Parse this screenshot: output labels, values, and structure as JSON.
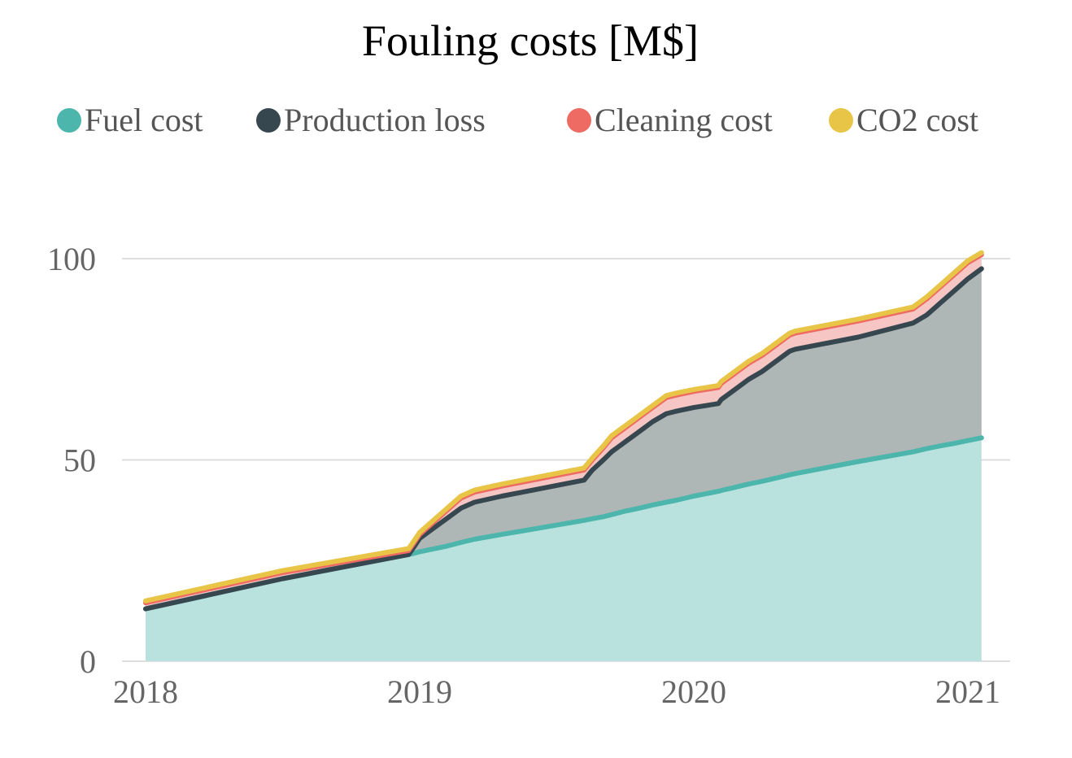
{
  "chart_data": {
    "type": "area",
    "title": "Fouling costs [M$]",
    "xlabel": "",
    "ylabel": "",
    "x_ticks": [
      "2018",
      "2019",
      "2020",
      "2021"
    ],
    "y_ticks": [
      "0",
      "50",
      "100"
    ],
    "xlim": [
      2018.0,
      2021.05
    ],
    "ylim": [
      0,
      100
    ],
    "grid": "horizontal",
    "legend_position": "top",
    "stacked": true,
    "series": [
      {
        "name": "Fuel cost",
        "color": "#4DB6AC",
        "fill": "#B9E2DE"
      },
      {
        "name": "Production loss",
        "color": "#37474F",
        "fill": "#AFB6B6"
      },
      {
        "name": "Cleaning cost",
        "color": "#EE6B63",
        "fill": "#F5C6C4"
      },
      {
        "name": "CO2 cost",
        "color": "#E8C547",
        "fill": "#F3E3A0"
      }
    ],
    "x": [
      2018.0,
      2018.5,
      2018.96,
      2018.98,
      2019.0,
      2019.05,
      2019.1,
      2019.15,
      2019.2,
      2019.3,
      2019.6,
      2019.63,
      2019.67,
      2019.7,
      2019.75,
      2019.8,
      2019.85,
      2019.9,
      2019.93,
      2019.95,
      2020.0,
      2020.09,
      2020.1,
      2020.15,
      2020.2,
      2020.25,
      2020.3,
      2020.35,
      2020.37,
      2020.6,
      2020.8,
      2020.85,
      2020.9,
      2020.95,
      2021.0,
      2021.05
    ],
    "cumulative_totals": {
      "Fuel cost": [
        13.0,
        20.5,
        26.5,
        26.8,
        27.2,
        27.9,
        28.6,
        29.5,
        30.3,
        31.5,
        35.0,
        35.4,
        35.9,
        36.4,
        37.3,
        38.0,
        38.8,
        39.5,
        39.9,
        40.2,
        41.0,
        42.2,
        42.4,
        43.2,
        44.0,
        44.7,
        45.5,
        46.3,
        46.6,
        49.6,
        52.0,
        52.8,
        53.5,
        54.1,
        54.8,
        55.5
      ],
      "Production loss": [
        13.0,
        20.5,
        26.5,
        28.5,
        30.5,
        33.0,
        35.5,
        38.0,
        39.5,
        41.0,
        45.0,
        47.5,
        50.0,
        52.0,
        54.5,
        57.0,
        59.5,
        61.5,
        62.0,
        62.3,
        63.0,
        64.0,
        65.0,
        67.5,
        70.0,
        72.0,
        74.5,
        77.0,
        77.5,
        80.5,
        84.0,
        86.0,
        89.0,
        92.0,
        95.0,
        97.5
      ],
      "Cleaning cost": [
        14.5,
        22.0,
        27.5,
        29.5,
        31.5,
        34.5,
        37.5,
        40.5,
        42.0,
        43.5,
        47.5,
        50.0,
        53.0,
        55.5,
        58.0,
        60.5,
        63.0,
        65.5,
        66.0,
        66.3,
        67.0,
        68.0,
        69.0,
        71.5,
        74.0,
        76.0,
        78.5,
        81.0,
        81.5,
        84.5,
        87.5,
        90.0,
        93.0,
        96.0,
        99.0,
        101.0
      ],
      "CO2 cost": [
        15.0,
        22.5,
        28.0,
        30.0,
        32.0,
        35.0,
        38.0,
        41.0,
        42.5,
        44.0,
        48.0,
        50.5,
        53.5,
        56.0,
        58.5,
        61.0,
        63.5,
        66.0,
        66.5,
        66.8,
        67.5,
        68.5,
        69.5,
        72.0,
        74.5,
        76.5,
        79.0,
        81.5,
        82.0,
        85.0,
        88.0,
        90.5,
        93.5,
        96.5,
        99.5,
        101.5
      ]
    }
  }
}
